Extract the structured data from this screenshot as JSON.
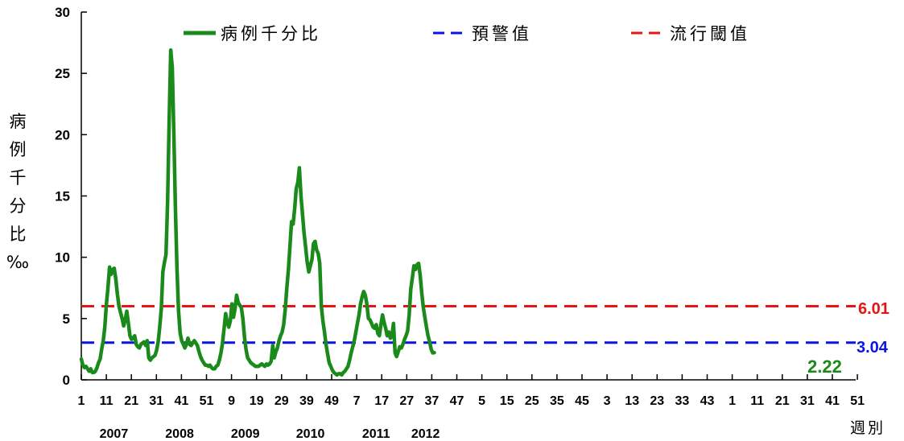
{
  "chart_data": {
    "type": "line",
    "ylabel": "病例千分比‰",
    "xlabel": "週別",
    "ylim": [
      0,
      30
    ],
    "y_ticks": [
      "0",
      "5",
      "10",
      "15",
      "20",
      "25",
      "30"
    ],
    "x_ticks": [
      "1",
      "11",
      "21",
      "31",
      "41",
      "51",
      "9",
      "19",
      "29",
      "39",
      "49",
      "7",
      "17",
      "27",
      "37",
      "47",
      "5",
      "15",
      "25",
      "35",
      "45",
      "3",
      "13",
      "23",
      "33",
      "43",
      "1",
      "11",
      "21",
      "31",
      "41",
      "51"
    ],
    "years": [
      "2007",
      "2008",
      "2009",
      "2010",
      "2011",
      "2012"
    ],
    "grid": false,
    "legend_position": "top",
    "series": [
      {
        "name": "病例千分比",
        "color": "#1a8a1a",
        "values": [
          1.7,
          1.2,
          1.0,
          1.1,
          0.9,
          0.7,
          0.9,
          0.6,
          0.6,
          0.7,
          1.0,
          1.4,
          1.7,
          2.5,
          3.2,
          4.3,
          6.2,
          7.5,
          9.2,
          8.6,
          9.0,
          9.1,
          8.2,
          7.0,
          6.0,
          5.5,
          5.0,
          4.4,
          4.9,
          5.6,
          4.6,
          3.6,
          3.3,
          3.4,
          3.6,
          2.9,
          2.7,
          2.6,
          2.9,
          3.0,
          3.1,
          2.8,
          3.2,
          1.8,
          1.6,
          1.8,
          1.9,
          2.0,
          2.4,
          3.1,
          4.3,
          5.8,
          8.8,
          9.6,
          10.2,
          14.5,
          21.0,
          26.9,
          25.5,
          20.0,
          14.0,
          9.0,
          5.6,
          3.8,
          3.2,
          2.9,
          2.6,
          2.9,
          3.4,
          2.9,
          2.8,
          3.0,
          3.2,
          3.0,
          2.8,
          2.3,
          1.9,
          1.6,
          1.4,
          1.2,
          1.2,
          1.1,
          1.2,
          1.0,
          0.9,
          0.9,
          1.1,
          1.2,
          1.6,
          2.2,
          3.0,
          4.2,
          5.4,
          4.7,
          4.3,
          4.8,
          6.2,
          5.1,
          5.8,
          6.9,
          6.3,
          6.1,
          5.9,
          5.0,
          3.5,
          2.5,
          1.8,
          1.6,
          1.4,
          1.3,
          1.2,
          1.1,
          1.1,
          1.1,
          1.2,
          1.3,
          1.2,
          1.1,
          1.3,
          1.2,
          1.3,
          1.5,
          2.8,
          1.8,
          2.3,
          2.6,
          3.2,
          3.6,
          3.9,
          4.5,
          5.8,
          7.5,
          9.0,
          10.9,
          12.9,
          12.7,
          14.0,
          15.6,
          16.1,
          17.3,
          15.0,
          13.5,
          12.0,
          10.8,
          9.6,
          8.8,
          9.3,
          9.8,
          11.1,
          11.3,
          10.6,
          10.3,
          9.5,
          6.0,
          4.8,
          3.9,
          2.9,
          2.1,
          1.4,
          1.1,
          0.8,
          0.6,
          0.5,
          0.4,
          0.5,
          0.5,
          0.4,
          0.6,
          0.7,
          0.9,
          1.1,
          1.6,
          2.2,
          2.7,
          3.2,
          3.9,
          4.6,
          5.3,
          6.2,
          6.8,
          7.2,
          6.9,
          6.2,
          5.0,
          4.9,
          4.6,
          4.3,
          4.2,
          4.5,
          3.8,
          3.6,
          4.5,
          5.3,
          4.7,
          4.2,
          3.6,
          3.9,
          3.4,
          3.6,
          4.6,
          2.2,
          1.9,
          2.3,
          2.7,
          2.6,
          2.9,
          3.3,
          3.6,
          4.0,
          5.3,
          7.4,
          8.3,
          9.3,
          9.0,
          9.4,
          9.5,
          8.5,
          7.1,
          5.9,
          5.1,
          4.3,
          3.6,
          3.1,
          2.5,
          2.2,
          2.22
        ]
      }
    ],
    "reference_lines": [
      {
        "name": "預警值",
        "value": 3.04,
        "label": "3.04",
        "color": "#0a14e6"
      },
      {
        "name": "流行閾值",
        "value": 6.01,
        "label": "6.01",
        "color": "#e61414"
      }
    ],
    "last_value_label": "2.22"
  }
}
